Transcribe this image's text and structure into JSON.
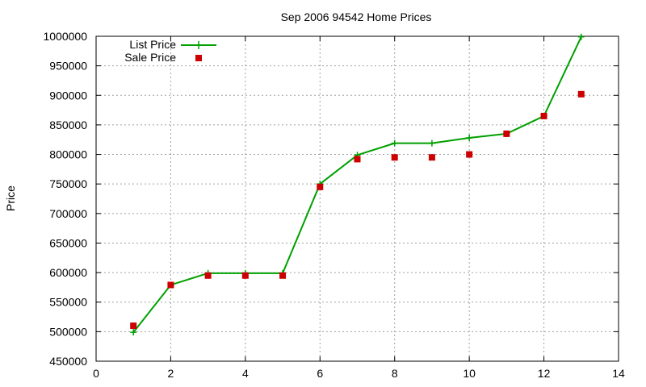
{
  "chart_data": {
    "type": "line",
    "title": "Sep 2006 94542 Home Prices",
    "xlabel": "",
    "ylabel": "Price",
    "xlim": [
      0,
      14
    ],
    "ylim": [
      450000,
      1000000
    ],
    "xticks": [
      0,
      2,
      4,
      6,
      8,
      10,
      12,
      14
    ],
    "yticks": [
      450000,
      500000,
      550000,
      600000,
      650000,
      700000,
      750000,
      800000,
      850000,
      900000,
      950000,
      1000000
    ],
    "grid": true,
    "legend_position": "top-left",
    "series": [
      {
        "name": "List Price",
        "style": "line+cross",
        "color": "#00a000",
        "x": [
          1,
          2,
          3,
          4,
          5,
          6,
          7,
          8,
          9,
          10,
          11,
          12,
          13
        ],
        "values": [
          499000,
          579000,
          599000,
          599000,
          599000,
          750000,
          799000,
          819000,
          819000,
          828000,
          835000,
          865000,
          999000
        ]
      },
      {
        "name": "Sale Price",
        "style": "square-points",
        "color": "#cc0000",
        "x": [
          1,
          2,
          3,
          4,
          5,
          6,
          7,
          8,
          9,
          10,
          11,
          12,
          13
        ],
        "values": [
          510000,
          579000,
          595000,
          595000,
          595000,
          745000,
          792000,
          795000,
          795000,
          800000,
          835000,
          865000,
          902000
        ]
      }
    ]
  }
}
